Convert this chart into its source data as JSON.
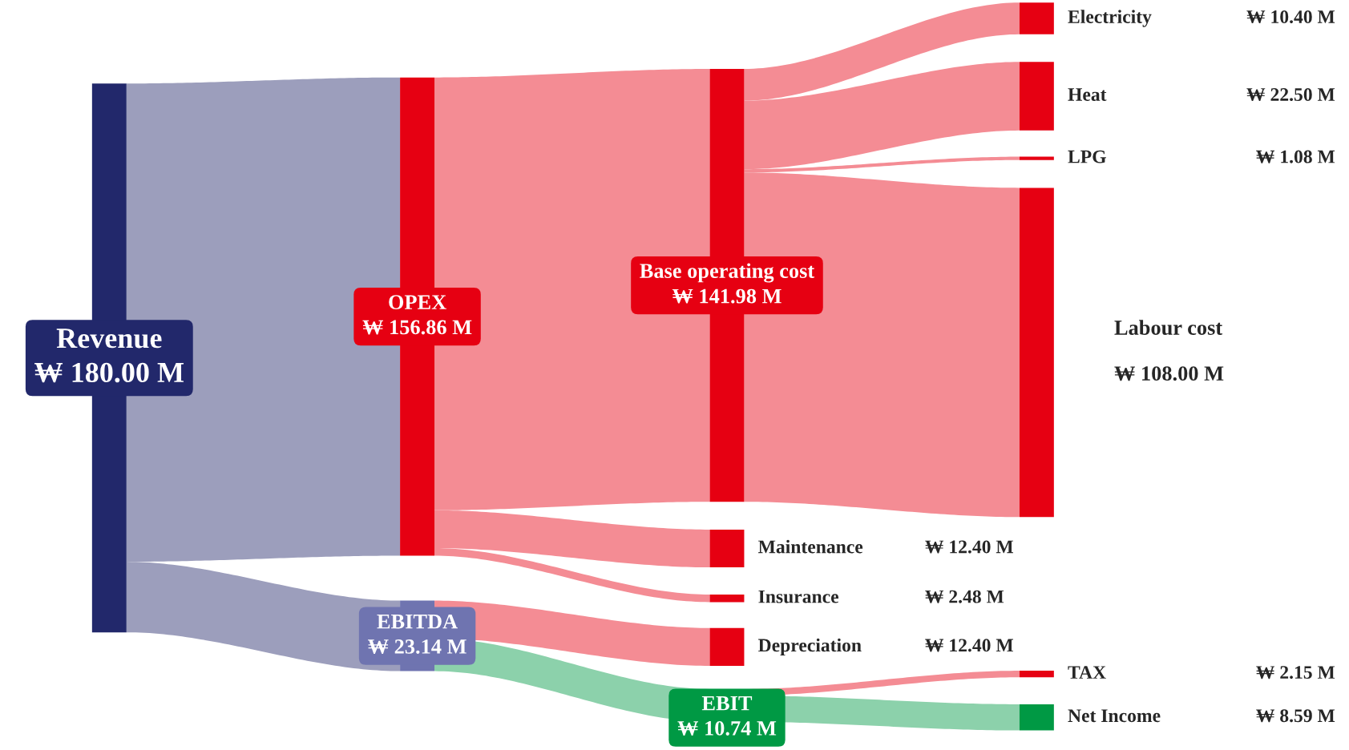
{
  "chart_data": {
    "type": "other",
    "categories": [
      "Revenue",
      "OPEX",
      "EBITDA",
      "Base operating cost",
      "Maintenance",
      "Insurance",
      "Depreciation",
      "EBIT",
      "Electricity",
      "Heat",
      "LPG",
      "Labour cost",
      "TAX",
      "Net Income"
    ],
    "values": [
      180.0,
      156.86,
      23.14,
      141.98,
      12.4,
      2.48,
      12.4,
      10.74,
      10.4,
      22.5,
      1.08,
      108.0,
      2.15,
      8.59
    ],
    "value_labels": [
      "₩ 180.00 M",
      "₩ 156.86 M",
      "₩ 23.14 M",
      "₩ 141.98 M",
      "₩ 12.40 M",
      "₩ 2.48 M",
      "₩ 12.40 M",
      "₩ 10.74 M",
      "₩ 10.40 M",
      "₩ 22.50 M",
      "₩ 1.08 M",
      "₩ 108.00 M",
      "₩ 2.15 M",
      "₩ 8.59 M"
    ],
    "colors": [
      "#22286b",
      "#e60012",
      "#6f74b0",
      "#e60012",
      "#e60012",
      "#e60012",
      "#e60012",
      "#009944",
      "#e60012",
      "#e60012",
      "#e60012",
      "#e60012",
      "#e60012",
      "#009944"
    ]
  }
}
